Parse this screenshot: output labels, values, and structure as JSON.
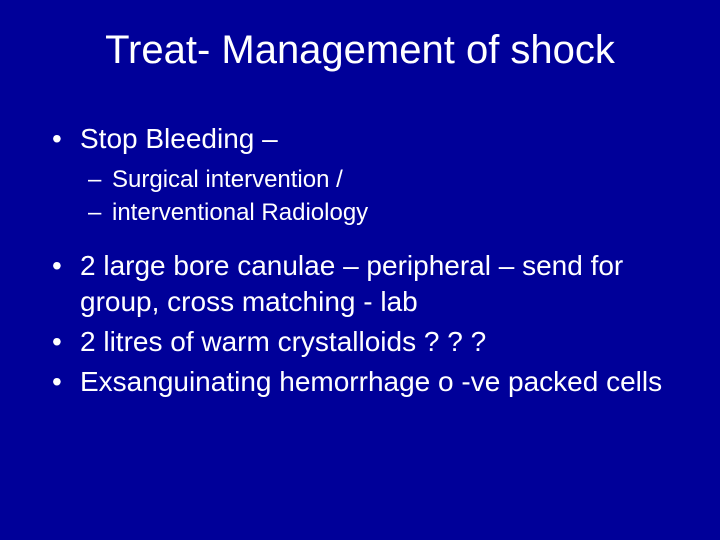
{
  "slide": {
    "title": "Treat- Management of shock",
    "bullets": [
      {
        "text": "Stop Bleeding –",
        "sub": [
          "Surgical intervention /",
          "interventional Radiology"
        ]
      },
      {
        "text": "2 large bore canulae – peripheral – send for group, cross matching - lab"
      },
      {
        "text": "2 litres of warm crystalloids ? ? ?"
      },
      {
        "text": "Exsanguinating hemorrhage  o -ve packed cells"
      }
    ],
    "colors": {
      "background": "#000099",
      "text": "#ffffff"
    },
    "typography": {
      "title_fontsize": 40,
      "bullet_fontsize": 28,
      "sub_fontsize": 24,
      "font_family": "Arial"
    }
  }
}
